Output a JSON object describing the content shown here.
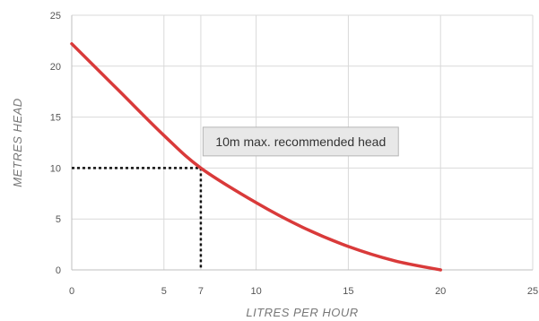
{
  "chart_data": {
    "type": "line",
    "title": "",
    "xlabel": "LITRES  PER  HOUR",
    "ylabel": "METRES    HEAD",
    "xlim": [
      0,
      25
    ],
    "ylim": [
      0,
      25
    ],
    "x_ticks": [
      0,
      5,
      7,
      10,
      15,
      20,
      25
    ],
    "y_ticks": [
      0,
      5,
      10,
      15,
      20,
      25
    ],
    "grid": true,
    "series": [
      {
        "color": "#d93a3a",
        "x": [
          0,
          2.5,
          5,
          7,
          10,
          12.5,
          15,
          17.5,
          20
        ],
        "y": [
          22.2,
          17.7,
          13.2,
          10.0,
          6.6,
          4.2,
          2.3,
          0.9,
          0.0
        ]
      }
    ],
    "reference_point": {
      "x": 7,
      "y": 10
    },
    "annotation": {
      "text": "10m max. recommended head",
      "x": 7.8,
      "y": 12.6
    },
    "colors": {
      "line": "#d93a3a",
      "grid": "#d9d9d9",
      "reference": "#111111",
      "annotation_bg": "#e8e8e8",
      "annotation_border": "#b5b5b5"
    }
  }
}
